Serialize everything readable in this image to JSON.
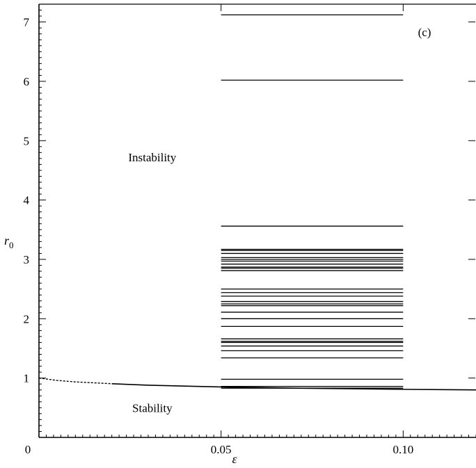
{
  "chart_data": {
    "type": "line",
    "title": "",
    "panel_label": "(c)",
    "xlabel": "ε",
    "ylabel": "r",
    "ylabel_subscript": "0",
    "xlim": [
      0,
      0.12
    ],
    "ylim": [
      0,
      7.3
    ],
    "x_ticks": [
      0,
      0.05,
      0.1
    ],
    "x_tick_labels": [
      "0",
      "0.05",
      "0.10"
    ],
    "y_ticks": [
      1,
      2,
      3,
      4,
      5,
      6,
      7
    ],
    "y_tick_labels": [
      "1",
      "2",
      "3",
      "4",
      "5",
      "6",
      "7"
    ],
    "grid": false,
    "boundary_curve": {
      "dashed": {
        "x": [
          0.0,
          0.005,
          0.01,
          0.015,
          0.02
        ],
        "y": [
          1.0,
          0.96,
          0.935,
          0.92,
          0.905
        ]
      },
      "solid": {
        "x": [
          0.02,
          0.03,
          0.05,
          0.07,
          0.1,
          0.12
        ],
        "y": [
          0.905,
          0.88,
          0.85,
          0.83,
          0.81,
          0.8
        ]
      }
    },
    "horizontal_lines": {
      "x_start": 0.05,
      "x_end": 0.1,
      "y": [
        7.12,
        6.02,
        3.56,
        3.17,
        3.15,
        3.1,
        3.03,
        3.0,
        2.97,
        2.92,
        2.87,
        2.85,
        2.81,
        2.5,
        2.44,
        2.38,
        2.29,
        2.25,
        2.22,
        2.11,
        2.0,
        1.87,
        1.66,
        1.62,
        1.6,
        1.54,
        1.46,
        1.34,
        0.98,
        0.86,
        0.83
      ]
    },
    "annotations": [
      {
        "text": "Instability",
        "x": 0.025,
        "y": 4.72
      },
      {
        "text": "Stability",
        "x": 0.025,
        "y": 0.5
      }
    ]
  }
}
